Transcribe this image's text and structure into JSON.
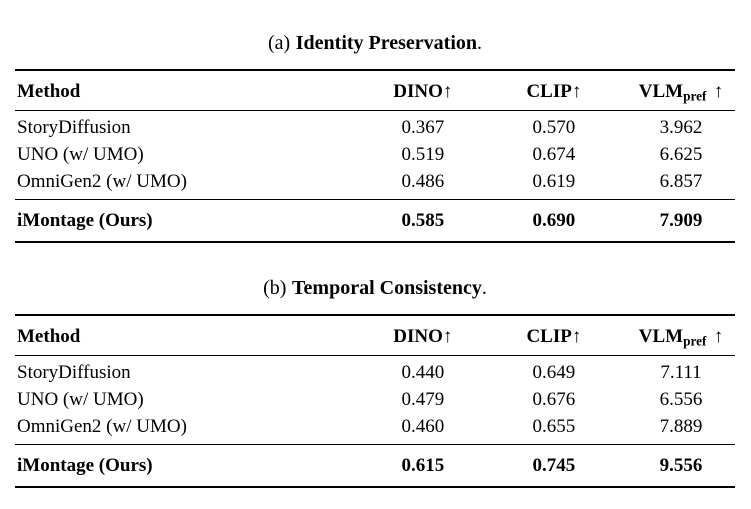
{
  "page": {
    "background_color": "#ffffff",
    "text_color": "#000000"
  },
  "tables": [
    {
      "caption": {
        "prefix": "(a)",
        "title": "Identity Preservation",
        "suffix": "."
      },
      "columns": [
        {
          "label": "Method"
        },
        {
          "label": "DINO",
          "arrow": "↑"
        },
        {
          "label": "CLIP",
          "arrow": "↑"
        },
        {
          "label": "VLM",
          "sub": "pref",
          "arrow": "↑"
        }
      ],
      "rows": [
        {
          "method": "StoryDiffusion",
          "dino": "0.367",
          "clip": "0.570",
          "vlm": "3.962"
        },
        {
          "method": "UNO (w/ UMO)",
          "dino": "0.519",
          "clip": "0.674",
          "vlm": "6.625"
        },
        {
          "method": "OmniGen2 (w/ UMO)",
          "dino": "0.486",
          "clip": "0.619",
          "vlm": "6.857"
        }
      ],
      "highlight": {
        "method": "iMontage (Ours)",
        "dino": "0.585",
        "clip": "0.690",
        "vlm": "7.909"
      }
    },
    {
      "caption": {
        "prefix": "(b)",
        "title": "Temporal Consistency",
        "suffix": "."
      },
      "columns": [
        {
          "label": "Method"
        },
        {
          "label": "DINO",
          "arrow": "↑"
        },
        {
          "label": "CLIP",
          "arrow": "↑"
        },
        {
          "label": "VLM",
          "sub": "pref",
          "arrow": "↑"
        }
      ],
      "rows": [
        {
          "method": "StoryDiffusion",
          "dino": "0.440",
          "clip": "0.649",
          "vlm": "7.111"
        },
        {
          "method": "UNO (w/ UMO)",
          "dino": "0.479",
          "clip": "0.676",
          "vlm": "6.556"
        },
        {
          "method": "OmniGen2 (w/ UMO)",
          "dino": "0.460",
          "clip": "0.655",
          "vlm": "7.889"
        }
      ],
      "highlight": {
        "method": "iMontage (Ours)",
        "dino": "0.615",
        "clip": "0.745",
        "vlm": "9.556"
      }
    }
  ]
}
